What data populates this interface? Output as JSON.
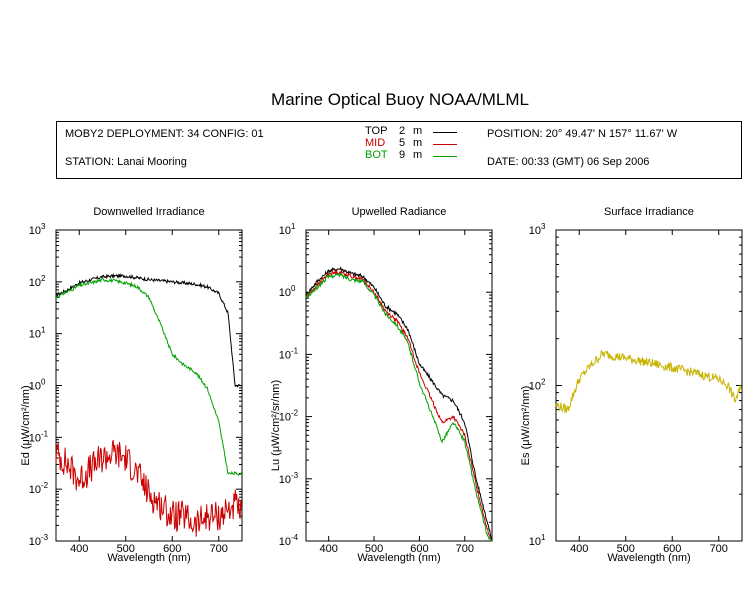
{
  "header": {
    "title": "Marine Optical Buoy NOAA/MLML"
  },
  "info": {
    "deployment": "MOBY2 DEPLOYMENT: 34 CONFIG: 01",
    "station": "STATION: Lanai Mooring",
    "position": "POSITION: 20° 49.47' N   157° 11.67' W",
    "date": "DATE: 00:33 (GMT) 06 Sep 2006",
    "legend": [
      {
        "name": "TOP",
        "depth": "2",
        "unit": "m",
        "color": "#000000"
      },
      {
        "name": "MID",
        "depth": "5",
        "unit": "m",
        "color": "#cc0000"
      },
      {
        "name": "BOT",
        "depth": "9",
        "unit": "m",
        "color": "#00a000"
      }
    ]
  },
  "colors": {
    "top": "#000000",
    "mid": "#cc0000",
    "bot": "#00a000",
    "surface": "#c8b400"
  },
  "chart_data": [
    {
      "type": "line",
      "title": "Downwelled Irradiance",
      "xlabel": "Wavelength (nm)",
      "ylabel": "Ed  (μW/cm²/nm)",
      "yscale": "log",
      "xlim": [
        350,
        750
      ],
      "ylim": [
        0.001,
        1000
      ],
      "xticks": [
        400,
        500,
        600,
        700
      ],
      "yticks": [
        "10-3",
        "10-2",
        "10-1",
        "100",
        "101",
        "102",
        "103"
      ],
      "x": [
        350,
        375,
        400,
        425,
        450,
        475,
        500,
        525,
        550,
        575,
        600,
        625,
        650,
        675,
        700,
        720,
        735,
        750
      ],
      "series": [
        {
          "name": "TOP",
          "values": [
            55,
            70,
            95,
            110,
            125,
            130,
            130,
            120,
            110,
            105,
            100,
            95,
            90,
            80,
            60,
            25,
            1.0,
            1.0
          ]
        },
        {
          "name": "MID",
          "values": [
            0.05,
            0.03,
            0.015,
            0.025,
            0.04,
            0.05,
            0.04,
            0.02,
            0.008,
            0.005,
            0.003,
            0.003,
            0.002,
            0.003,
            0.003,
            0.004,
            0.005,
            0.003
          ]
        },
        {
          "name": "BOT",
          "values": [
            50,
            65,
            85,
            95,
            110,
            105,
            95,
            80,
            50,
            15,
            4,
            2.5,
            1.8,
            0.9,
            0.2,
            0.02,
            0.02,
            0.02
          ]
        }
      ]
    },
    {
      "type": "line",
      "title": "Upwelled Radiance",
      "xlabel": "Wavelength (nm)",
      "ylabel": "Lu  (μW/cm²/sr/nm)",
      "yscale": "log",
      "xlim": [
        350,
        760
      ],
      "ylim": [
        0.0001,
        10
      ],
      "xticks": [
        400,
        500,
        600,
        700
      ],
      "yticks": [
        "10-4",
        "10-3",
        "10-2",
        "10-1",
        "100",
        "101"
      ],
      "x": [
        350,
        375,
        400,
        425,
        450,
        475,
        500,
        525,
        550,
        575,
        600,
        625,
        650,
        675,
        700,
        725,
        750,
        760
      ],
      "series": [
        {
          "name": "TOP",
          "values": [
            0.9,
            1.5,
            2.2,
            2.4,
            2.0,
            1.8,
            1.2,
            0.6,
            0.45,
            0.25,
            0.07,
            0.04,
            0.022,
            0.018,
            0.008,
            0.001,
            0.0002,
            0.0001
          ]
        },
        {
          "name": "MID",
          "values": [
            0.85,
            1.3,
            2.0,
            2.1,
            1.8,
            1.6,
            1.0,
            0.5,
            0.35,
            0.18,
            0.05,
            0.02,
            0.008,
            0.01,
            0.005,
            0.0008,
            0.00015,
            0.0001
          ]
        },
        {
          "name": "BOT",
          "values": [
            0.8,
            1.2,
            1.8,
            1.9,
            1.6,
            1.5,
            0.9,
            0.45,
            0.3,
            0.15,
            0.035,
            0.012,
            0.004,
            0.008,
            0.004,
            0.0006,
            0.00012,
            0.0001
          ]
        }
      ]
    },
    {
      "type": "line",
      "title": "Surface Irradiance",
      "xlabel": "Wavelength (nm)",
      "ylabel": "Es  (μW/cm²/nm)",
      "yscale": "log",
      "xlim": [
        350,
        750
      ],
      "ylim": [
        10,
        1000
      ],
      "xticks": [
        400,
        500,
        600,
        700
      ],
      "yticks": [
        "101",
        "102",
        "103"
      ],
      "x": [
        350,
        375,
        400,
        425,
        450,
        475,
        500,
        525,
        550,
        575,
        600,
        625,
        650,
        675,
        700,
        720,
        735,
        750
      ],
      "series": [
        {
          "name": "Es",
          "values": [
            75,
            70,
            110,
            135,
            160,
            155,
            150,
            145,
            140,
            135,
            130,
            125,
            120,
            115,
            110,
            100,
            80,
            100
          ]
        }
      ]
    }
  ]
}
